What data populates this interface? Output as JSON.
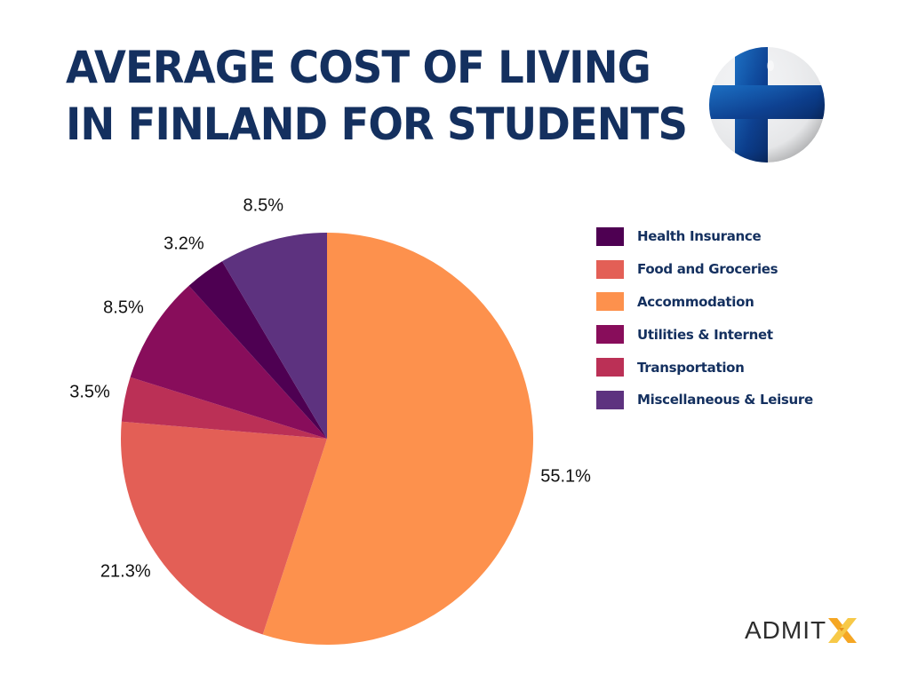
{
  "header": {
    "title_line1": "AVERAGE COST OF LIVING",
    "title_line2": "IN FINLAND FOR STUDENTS",
    "flag_icon": "finland-flag-icon"
  },
  "brand": {
    "logo_text": "ADMIT",
    "logo_mark": "X",
    "logo_mark_colors": [
      "#f5a623",
      "#f7c948"
    ]
  },
  "chart_data": {
    "type": "pie",
    "title": "AVERAGE COST OF LIVING IN FINLAND FOR STUDENTS",
    "start_angle_deg": 0,
    "direction": "clockwise",
    "legend_position": "right",
    "slices": [
      {
        "label": "Accommodation",
        "value": 55.1,
        "display": "55.1%",
        "color": "#fd914d"
      },
      {
        "label": "Food and Groceries",
        "value": 21.3,
        "display": "21.3%",
        "color": "#e35f56"
      },
      {
        "label": "Transportation",
        "value": 3.5,
        "display": "3.5%",
        "color": "#bb3056"
      },
      {
        "label": "Utilities & Internet",
        "value": 8.5,
        "display": "8.5%",
        "color": "#880d5b"
      },
      {
        "label": "Health Insurance",
        "value": 3.2,
        "display": "3.2%",
        "color": "#4e0052"
      },
      {
        "label": "Miscellaneous & Leisure",
        "value": 8.5,
        "display": "8.5%",
        "color": "#5d327f"
      }
    ],
    "legend": [
      {
        "label": "Health Insurance",
        "color": "#4e0052"
      },
      {
        "label": "Food and Groceries",
        "color": "#e35f56"
      },
      {
        "label": "Accommodation",
        "color": "#fd914d"
      },
      {
        "label": "Utilities & Internet",
        "color": "#880d5b"
      },
      {
        "label": "Transportation",
        "color": "#bb3056"
      },
      {
        "label": "Miscellaneous & Leisure",
        "color": "#5d327f"
      }
    ]
  }
}
